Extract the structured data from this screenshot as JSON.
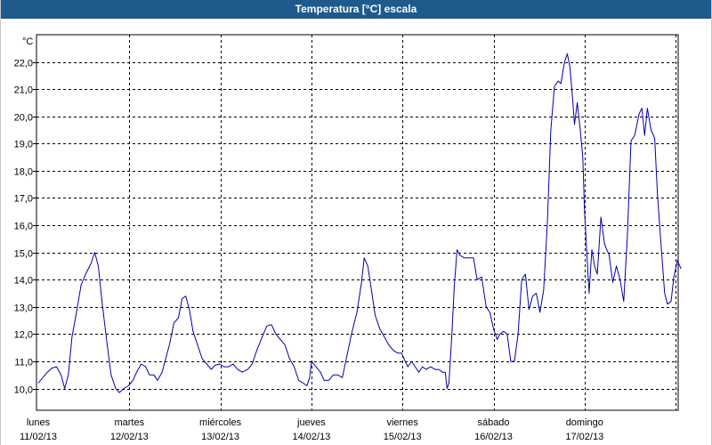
{
  "window": {
    "title": "Temperatura [°C] escala"
  },
  "chart_data": {
    "type": "line",
    "title": "Temperatura [°C] escala",
    "ylabel": "°C",
    "xlabel": "",
    "ylim": [
      9.2,
      23.0
    ],
    "xlim": [
      0,
      7.06
    ],
    "grid": true,
    "y_ticks": [
      "10,0",
      "11,0",
      "12,0",
      "13,0",
      "14,0",
      "15,0",
      "16,0",
      "17,0",
      "18,0",
      "19,0",
      "20,0",
      "21,0",
      "22,0"
    ],
    "x_ticks": [
      {
        "day": "lunes",
        "date": "11/02/13"
      },
      {
        "day": "martes",
        "date": "12/02/13"
      },
      {
        "day": "miércoles",
        "date": "13/02/13"
      },
      {
        "day": "jueves",
        "date": "14/02/13"
      },
      {
        "day": "viernes",
        "date": "15/02/13"
      },
      {
        "day": "sábado",
        "date": "16/02/13"
      },
      {
        "day": "domingo",
        "date": "17/02/13"
      }
    ],
    "series": [
      {
        "color": "#0000aa",
        "points": [
          [
            0.0,
            10.2
          ],
          [
            0.05,
            10.4
          ],
          [
            0.1,
            10.6
          ],
          [
            0.15,
            10.75
          ],
          [
            0.2,
            10.8
          ],
          [
            0.25,
            10.5
          ],
          [
            0.29,
            10.0
          ],
          [
            0.33,
            10.5
          ],
          [
            0.37,
            11.9
          ],
          [
            0.42,
            12.8
          ],
          [
            0.47,
            13.8
          ],
          [
            0.52,
            14.2
          ],
          [
            0.58,
            14.6
          ],
          [
            0.62,
            15.0
          ],
          [
            0.66,
            14.5
          ],
          [
            0.7,
            13.2
          ],
          [
            0.75,
            11.8
          ],
          [
            0.8,
            10.5
          ],
          [
            0.85,
            10.0
          ],
          [
            0.89,
            9.85
          ],
          [
            0.94,
            10.0
          ],
          [
            0.99,
            10.1
          ],
          [
            1.04,
            10.3
          ],
          [
            1.08,
            10.6
          ],
          [
            1.13,
            10.9
          ],
          [
            1.18,
            10.8
          ],
          [
            1.22,
            10.5
          ],
          [
            1.27,
            10.5
          ],
          [
            1.31,
            10.3
          ],
          [
            1.36,
            10.6
          ],
          [
            1.4,
            11.1
          ],
          [
            1.44,
            11.6
          ],
          [
            1.49,
            12.4
          ],
          [
            1.54,
            12.6
          ],
          [
            1.58,
            13.3
          ],
          [
            1.62,
            13.4
          ],
          [
            1.66,
            12.9
          ],
          [
            1.7,
            12.1
          ],
          [
            1.75,
            11.6
          ],
          [
            1.8,
            11.1
          ],
          [
            1.85,
            10.9
          ],
          [
            1.9,
            10.7
          ],
          [
            1.94,
            10.85
          ],
          [
            1.99,
            10.9
          ],
          [
            2.04,
            10.8
          ],
          [
            2.09,
            10.8
          ],
          [
            2.14,
            10.9
          ],
          [
            2.19,
            10.7
          ],
          [
            2.24,
            10.6
          ],
          [
            2.3,
            10.7
          ],
          [
            2.35,
            10.9
          ],
          [
            2.4,
            11.4
          ],
          [
            2.46,
            11.9
          ],
          [
            2.51,
            12.3
          ],
          [
            2.56,
            12.35
          ],
          [
            2.61,
            12.0
          ],
          [
            2.66,
            11.8
          ],
          [
            2.71,
            11.6
          ],
          [
            2.76,
            11.1
          ],
          [
            2.81,
            10.8
          ],
          [
            2.86,
            10.3
          ],
          [
            2.91,
            10.2
          ],
          [
            2.95,
            10.1
          ],
          [
            2.98,
            10.4
          ],
          [
            3.0,
            11.0
          ],
          [
            3.05,
            10.8
          ],
          [
            3.1,
            10.6
          ],
          [
            3.14,
            10.3
          ],
          [
            3.19,
            10.3
          ],
          [
            3.24,
            10.5
          ],
          [
            3.29,
            10.5
          ],
          [
            3.34,
            10.4
          ],
          [
            3.39,
            11.2
          ],
          [
            3.44,
            12.0
          ],
          [
            3.5,
            12.8
          ],
          [
            3.55,
            13.9
          ],
          [
            3.58,
            14.8
          ],
          [
            3.62,
            14.5
          ],
          [
            3.66,
            13.6
          ],
          [
            3.7,
            12.7
          ],
          [
            3.75,
            12.2
          ],
          [
            3.8,
            11.9
          ],
          [
            3.85,
            11.6
          ],
          [
            3.9,
            11.4
          ],
          [
            3.95,
            11.3
          ],
          [
            3.99,
            11.3
          ],
          [
            4.03,
            11.0
          ],
          [
            4.06,
            10.8
          ],
          [
            4.1,
            11.0
          ],
          [
            4.14,
            10.8
          ],
          [
            4.18,
            10.6
          ],
          [
            4.22,
            10.8
          ],
          [
            4.26,
            10.7
          ],
          [
            4.31,
            10.8
          ],
          [
            4.36,
            10.7
          ],
          [
            4.4,
            10.7
          ],
          [
            4.44,
            10.6
          ],
          [
            4.47,
            10.6
          ],
          [
            4.49,
            10.0
          ],
          [
            4.51,
            10.2
          ],
          [
            4.54,
            11.8
          ],
          [
            4.57,
            13.8
          ],
          [
            4.6,
            15.1
          ],
          [
            4.63,
            14.9
          ],
          [
            4.68,
            14.8
          ],
          [
            4.73,
            14.8
          ],
          [
            4.78,
            14.8
          ],
          [
            4.82,
            14.0
          ],
          [
            4.87,
            14.1
          ],
          [
            4.92,
            13.0
          ],
          [
            4.96,
            12.8
          ],
          [
            5.0,
            12.2
          ],
          [
            5.04,
            11.8
          ],
          [
            5.07,
            12.0
          ],
          [
            5.11,
            12.1
          ],
          [
            5.15,
            12.0
          ],
          [
            5.19,
            11.0
          ],
          [
            5.23,
            11.0
          ],
          [
            5.27,
            12.0
          ],
          [
            5.31,
            14.0
          ],
          [
            5.35,
            14.2
          ],
          [
            5.39,
            12.9
          ],
          [
            5.43,
            13.4
          ],
          [
            5.47,
            13.5
          ],
          [
            5.51,
            12.8
          ],
          [
            5.55,
            13.6
          ],
          [
            5.59,
            16.0
          ],
          [
            5.63,
            19.5
          ],
          [
            5.67,
            21.1
          ],
          [
            5.71,
            21.3
          ],
          [
            5.74,
            21.2
          ],
          [
            5.78,
            22.0
          ],
          [
            5.81,
            22.3
          ],
          [
            5.84,
            21.8
          ],
          [
            5.87,
            20.6
          ],
          [
            5.89,
            19.7
          ],
          [
            5.92,
            20.5
          ],
          [
            5.95,
            19.6
          ],
          [
            5.98,
            18.5
          ],
          [
            6.0,
            16.5
          ],
          [
            6.02,
            15.3
          ],
          [
            6.05,
            13.5
          ],
          [
            6.08,
            15.1
          ],
          [
            6.11,
            14.5
          ],
          [
            6.14,
            14.2
          ],
          [
            6.18,
            16.3
          ],
          [
            6.22,
            15.3
          ],
          [
            6.27,
            14.9
          ],
          [
            6.31,
            13.9
          ],
          [
            6.35,
            14.5
          ],
          [
            6.39,
            14.0
          ],
          [
            6.43,
            13.2
          ],
          [
            6.47,
            15.6
          ],
          [
            6.51,
            19.1
          ],
          [
            6.55,
            19.3
          ],
          [
            6.6,
            20.1
          ],
          [
            6.63,
            20.3
          ],
          [
            6.66,
            19.3
          ],
          [
            6.69,
            20.3
          ],
          [
            6.73,
            19.5
          ],
          [
            6.77,
            19.2
          ],
          [
            6.8,
            17.2
          ],
          [
            6.84,
            15.3
          ],
          [
            6.88,
            13.5
          ],
          [
            6.91,
            13.1
          ],
          [
            6.95,
            13.2
          ],
          [
            6.98,
            14.1
          ],
          [
            7.02,
            14.7
          ],
          [
            7.06,
            14.4
          ]
        ]
      }
    ]
  }
}
